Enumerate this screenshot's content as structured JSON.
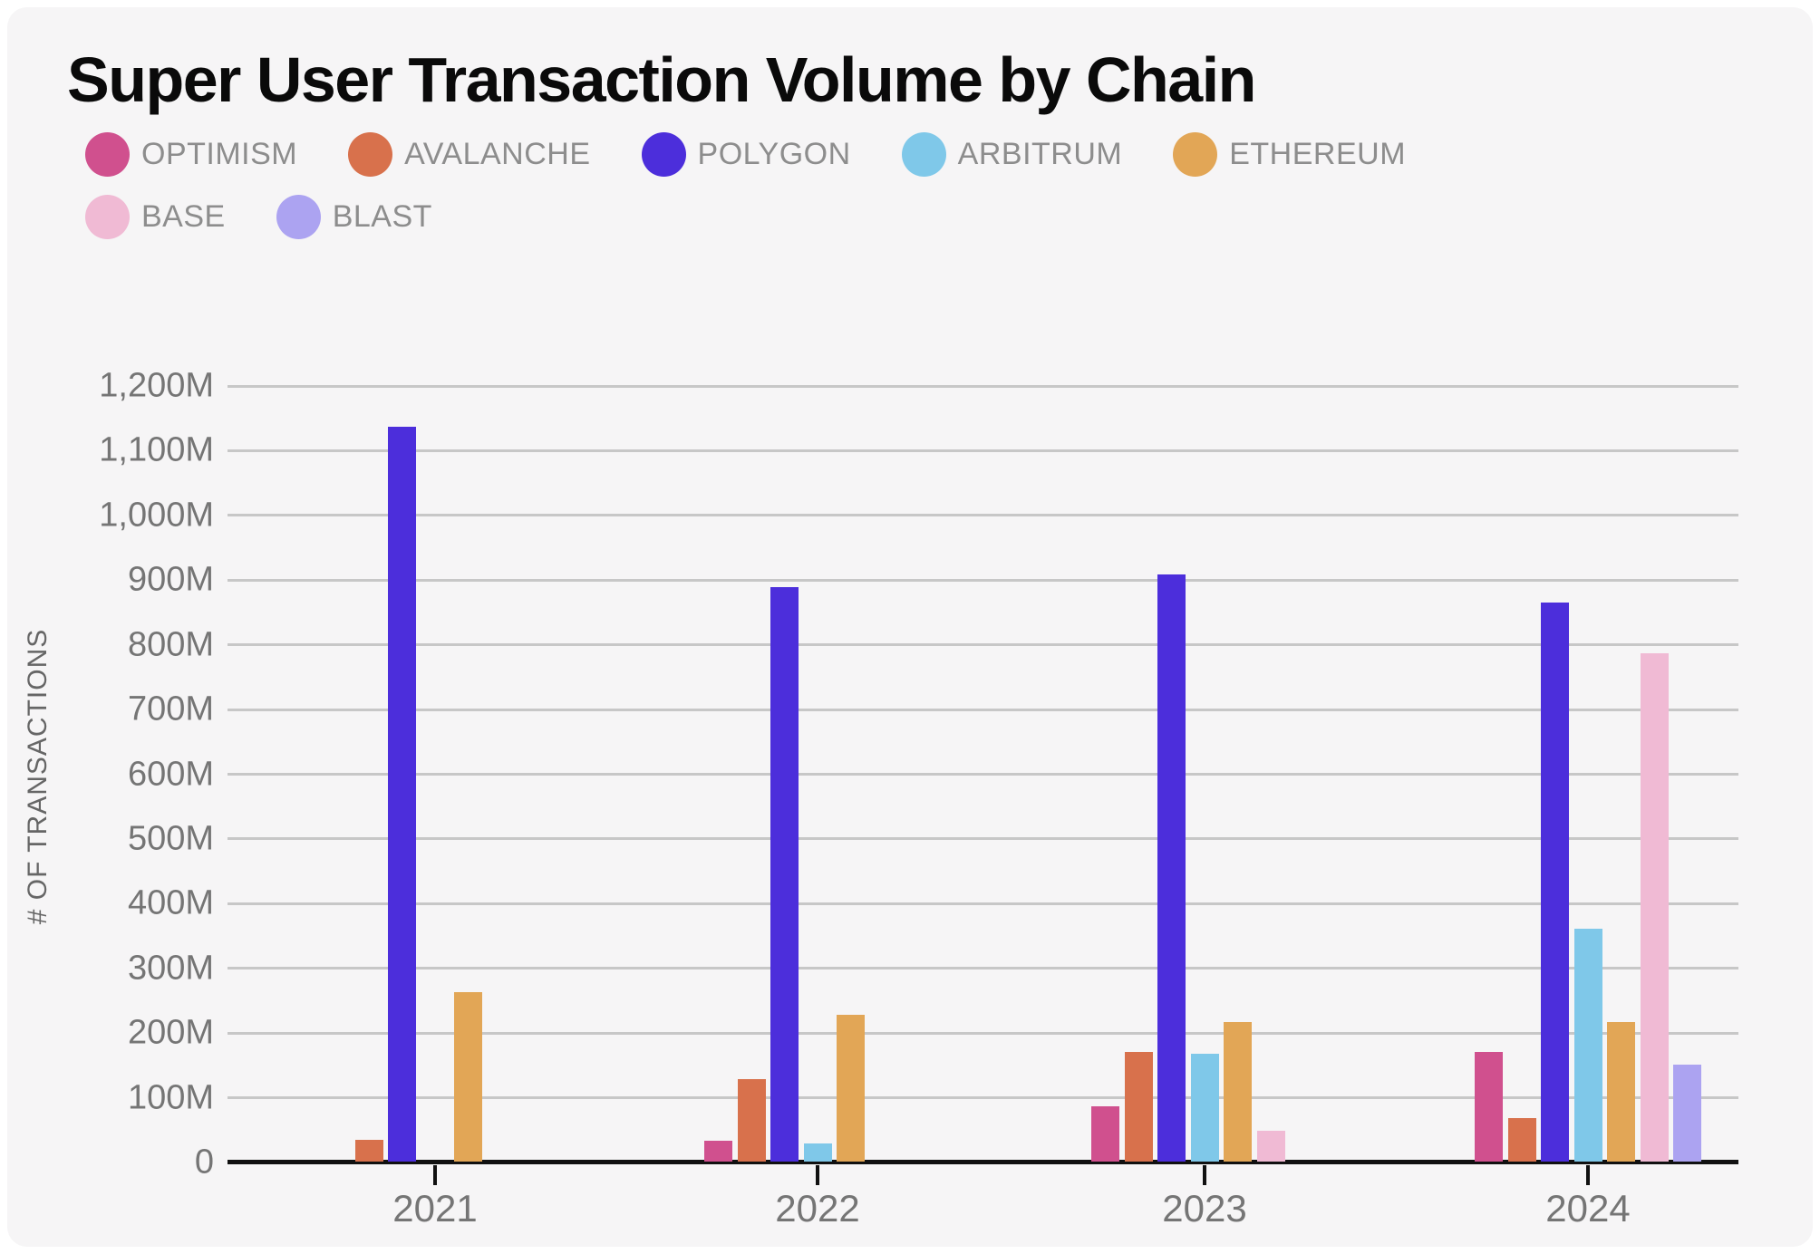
{
  "title": "Super User Transaction Volume by Chain",
  "legend": [
    {
      "label": "OPTIMISM",
      "color": "#d0508e"
    },
    {
      "label": "AVALANCHE",
      "color": "#d8714c"
    },
    {
      "label": "POLYGON",
      "color": "#4c2edb"
    },
    {
      "label": "ARBITRUM",
      "color": "#7fc8e9"
    },
    {
      "label": "ETHEREUM",
      "color": "#e2a656"
    },
    {
      "label": "BASE",
      "color": "#f0bad4"
    },
    {
      "label": "BLAST",
      "color": "#aca3f1"
    }
  ],
  "y_axis": {
    "title": "# OF TRANSACTIONS",
    "tick_labels": [
      "1,200M",
      "1,100M",
      "1,000M",
      "900M",
      "800M",
      "700M",
      "600M",
      "500M",
      "400M",
      "300M",
      "200M",
      "100M",
      "0"
    ]
  },
  "chart_data": {
    "type": "bar",
    "title": "Super User Transaction Volume by Chain",
    "xlabel": "",
    "ylabel": "# OF TRANSACTIONS",
    "unit": "millions of transactions",
    "ylim": [
      0,
      1200
    ],
    "grid": "horizontal",
    "legend_position": "top",
    "categories": [
      "2021",
      "2022",
      "2023",
      "2024"
    ],
    "series": [
      {
        "name": "OPTIMISM",
        "color": "#d0508e",
        "values": [
          null,
          32,
          85,
          170
        ]
      },
      {
        "name": "AVALANCHE",
        "color": "#d8714c",
        "values": [
          33,
          128,
          170,
          67
        ]
      },
      {
        "name": "POLYGON",
        "color": "#4c2edb",
        "values": [
          1135,
          888,
          908,
          864
        ]
      },
      {
        "name": "ARBITRUM",
        "color": "#7fc8e9",
        "values": [
          null,
          28,
          166,
          360
        ]
      },
      {
        "name": "ETHEREUM",
        "color": "#e2a656",
        "values": [
          262,
          227,
          216,
          216
        ]
      },
      {
        "name": "BASE",
        "color": "#f0bad4",
        "values": [
          null,
          null,
          48,
          786
        ]
      },
      {
        "name": "BLAST",
        "color": "#aca3f1",
        "values": [
          null,
          null,
          null,
          150
        ]
      }
    ]
  }
}
